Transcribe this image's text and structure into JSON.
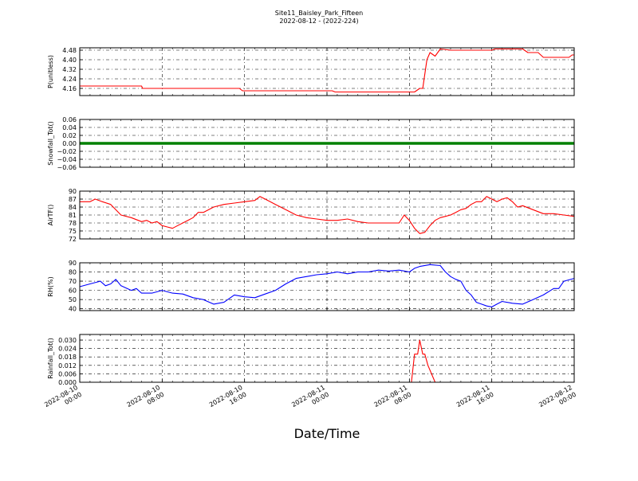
{
  "figure": {
    "title_line1": "Site11_Baisley_Park_Fifteen",
    "title_line2": "2022-08-12 - (2022-224)",
    "xlabel": "Date/Time",
    "x_tick_labels": [
      [
        "2022-08-10",
        "00:00"
      ],
      [
        "2022-08-10",
        "08:00"
      ],
      [
        "2022-08-10",
        "16:00"
      ],
      [
        "2022-08-11",
        "00:00"
      ],
      [
        "2022-08-11",
        "08:00"
      ],
      [
        "2022-08-11",
        "16:00"
      ],
      [
        "2022-08-12",
        "00:00"
      ]
    ]
  },
  "chart_data": [
    {
      "type": "line",
      "ylabel": "P(unitless)",
      "ylim": [
        4.1,
        4.5
      ],
      "yticks": [
        4.16,
        4.24,
        4.32,
        4.4,
        4.48
      ],
      "ytick_labels": [
        "4.16",
        "4.24",
        "4.32",
        "4.40",
        "4.48"
      ],
      "grid": true,
      "color": "#ff0000",
      "x_hours": [
        0,
        6,
        6.1,
        15.5,
        15.8,
        24.5,
        24.8,
        32.5,
        33.0,
        33.3,
        33.7,
        34.0,
        34.5,
        35.0,
        36,
        39,
        40,
        40.3,
        43,
        43.5,
        44.5,
        45,
        47.5,
        47.8,
        48
      ],
      "values": [
        4.18,
        4.18,
        4.16,
        4.16,
        4.14,
        4.14,
        4.13,
        4.13,
        4.16,
        4.16,
        4.4,
        4.46,
        4.43,
        4.49,
        4.48,
        4.48,
        4.48,
        4.49,
        4.49,
        4.46,
        4.46,
        4.42,
        4.42,
        4.44,
        4.44
      ]
    },
    {
      "type": "line",
      "ylabel": "Snowfall_Tot()",
      "ylim": [
        -0.06,
        0.06
      ],
      "yticks": [
        -0.06,
        -0.04,
        -0.02,
        0.0,
        0.02,
        0.04,
        0.06
      ],
      "ytick_labels": [
        "−0.06",
        "−0.04",
        "−0.02",
        "0.00",
        "0.02",
        "0.04",
        "0.06"
      ],
      "grid": true,
      "color": "#008000",
      "x_hours": [
        0,
        48
      ],
      "values": [
        0,
        0
      ]
    },
    {
      "type": "line",
      "ylabel": "AirTF()",
      "ylim": [
        72,
        90
      ],
      "yticks": [
        72,
        75,
        78,
        81,
        84,
        87,
        90
      ],
      "ytick_labels": [
        "72",
        "75",
        "78",
        "81",
        "84",
        "87",
        "90"
      ],
      "grid": true,
      "color": "#ff0000",
      "x_hours": [
        0,
        1,
        1.5,
        2.2,
        3,
        4,
        5,
        6,
        6.5,
        7,
        7.5,
        8,
        8.5,
        9,
        9.5,
        10,
        10.5,
        11,
        11.5,
        12,
        13,
        14,
        15,
        16,
        17,
        17.5,
        18,
        19,
        20,
        21,
        22,
        23,
        24,
        25,
        26,
        27,
        28,
        29,
        30,
        31,
        31.5,
        32,
        32.5,
        33,
        33.5,
        34,
        34.5,
        35,
        35.5,
        36,
        36.5,
        37,
        37.5,
        38,
        38.5,
        39,
        39.5,
        40,
        40.5,
        41,
        41.5,
        42,
        42.5,
        43,
        44,
        45,
        46,
        47,
        48
      ],
      "values": [
        86,
        86,
        87,
        86,
        85,
        81,
        80,
        78.5,
        79,
        78,
        78.5,
        77,
        76.5,
        76,
        77,
        78,
        79,
        80,
        82,
        82,
        84,
        85,
        85.5,
        86,
        86.5,
        88,
        87,
        85,
        83,
        81,
        80,
        79.5,
        79,
        79,
        79.5,
        78.5,
        78,
        78,
        78,
        78,
        81,
        79,
        76,
        74,
        74.5,
        77,
        79,
        80,
        80.5,
        81,
        82,
        83,
        83.5,
        85,
        86,
        86,
        88,
        87,
        86,
        87,
        87.5,
        86,
        84,
        84.5,
        83,
        81.5,
        81.5,
        81,
        80.5
      ]
    },
    {
      "type": "line",
      "ylabel": "RH(%)",
      "ylim": [
        38,
        90
      ],
      "yticks": [
        40,
        50,
        60,
        70,
        80,
        90
      ],
      "ytick_labels": [
        "40",
        "50",
        "60",
        "70",
        "80",
        "90"
      ],
      "grid": true,
      "color": "#0000ff",
      "x_hours": [
        0,
        1,
        2,
        2.5,
        3,
        3.5,
        4,
        5,
        5.5,
        6,
        7,
        8,
        9,
        10,
        11,
        12,
        13,
        14,
        15,
        16,
        17,
        18,
        19,
        20,
        21,
        22,
        23,
        24,
        25,
        26,
        27,
        28,
        29,
        30,
        31,
        32,
        32.5,
        33,
        34,
        35,
        35.5,
        36,
        36.5,
        37,
        37.5,
        38,
        38.5,
        39,
        39.5,
        40,
        40.5,
        41,
        42,
        43,
        44,
        45,
        46,
        46.5,
        47,
        48
      ],
      "values": [
        64,
        67,
        70,
        65,
        67,
        72,
        65,
        60,
        62,
        57,
        57,
        60,
        57,
        56,
        52,
        50,
        45,
        47,
        55,
        53,
        52,
        56,
        60,
        67,
        73,
        75,
        77,
        78,
        80,
        78,
        80,
        80,
        82,
        81,
        82,
        80,
        84,
        86,
        88,
        87,
        80,
        75,
        72,
        70,
        60,
        55,
        47,
        45,
        43,
        42,
        45,
        48,
        46,
        45,
        50,
        55,
        62,
        62,
        70,
        73
      ]
    },
    {
      "type": "line",
      "ylabel": "Rainfall_Tot()",
      "ylim": [
        0,
        0.034
      ],
      "yticks": [
        0.0,
        0.006,
        0.012,
        0.018,
        0.024,
        0.03
      ],
      "ytick_labels": [
        "0.000",
        "0.006",
        "0.012",
        "0.018",
        "0.024",
        "0.030"
      ],
      "grid": true,
      "color": "#ff0000",
      "x_hours": [
        0,
        32.2,
        32.5,
        32.8,
        33.0,
        33.3,
        33.5,
        33.8,
        34.5,
        48
      ],
      "values": [
        0,
        0,
        0.02,
        0.02,
        0.03,
        0.02,
        0.02,
        0.012,
        0,
        0
      ]
    }
  ]
}
